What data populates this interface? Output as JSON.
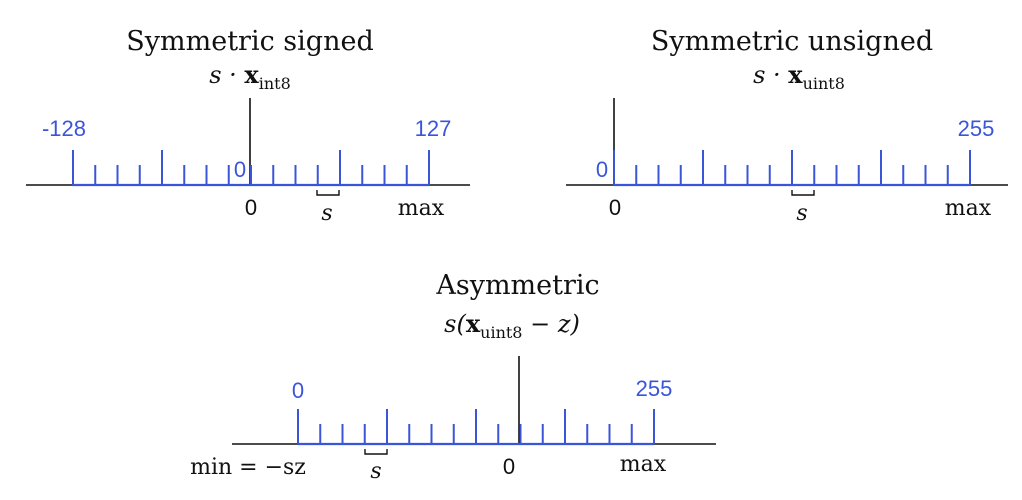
{
  "colors": {
    "scale": "#3b55d9",
    "axis": "#111111"
  },
  "diagrams": [
    {
      "id": "symmetric-signed",
      "title": "Symmetric signed",
      "formula": {
        "prefix": "s · ",
        "bold": "x",
        "sub": "int8",
        "suffix": ""
      },
      "left_value": "-128",
      "right_value": "127",
      "zero_value": "0",
      "axis_zero_label": "0",
      "axis_min_label": "",
      "axis_max_label": "max",
      "step_label": "s"
    },
    {
      "id": "symmetric-unsigned",
      "title": "Symmetric unsigned",
      "formula": {
        "prefix": "s · ",
        "bold": "x",
        "sub": "uint8",
        "suffix": ""
      },
      "left_value": "0",
      "right_value": "255",
      "zero_value": "",
      "axis_zero_label": "0",
      "axis_min_label": "",
      "axis_max_label": "max",
      "step_label": "s"
    },
    {
      "id": "asymmetric",
      "title": "Asymmetric",
      "formula": {
        "prefix": "s(",
        "bold": "x",
        "sub": "uint8",
        "suffix": " − z)"
      },
      "left_value": "0",
      "right_value": "255",
      "zero_value": "",
      "axis_zero_label": "0",
      "axis_min_label": "min = −sz",
      "axis_max_label": "max",
      "step_label": "s"
    }
  ]
}
